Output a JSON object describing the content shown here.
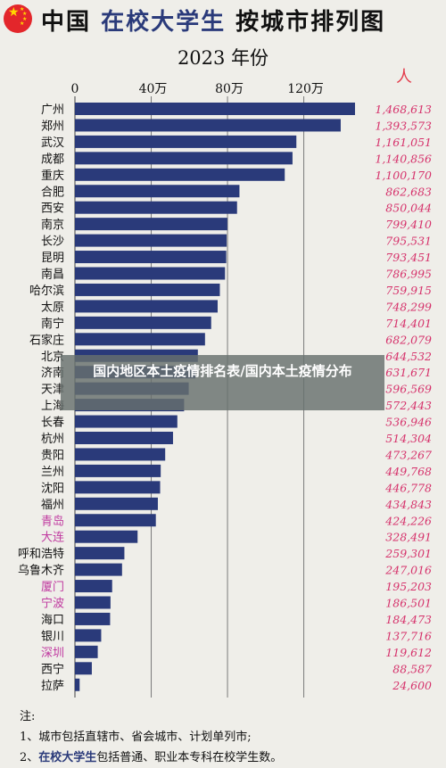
{
  "header": {
    "title_part1": "中国 ",
    "title_accent": "在校大学生",
    "title_part2": " 按城市排列图",
    "year": "2023 年份",
    "unit": "人"
  },
  "notes": {
    "heading": "注:",
    "line1": "1、城市包括直辖市、省会城市、计划单列市;",
    "line2_prefix": "2、",
    "line2_accent": "在校大学生",
    "line2_rest": "包括普通、职业本专科在校学生数。"
  },
  "overlay": {
    "text": "国内地区本土疫情排名表/国内本土疫情分布"
  },
  "colors": {
    "bar": "#2a3a7a",
    "value_label": "#d6336c",
    "highlight_city": "#c03aa0",
    "normal_city": "#111111",
    "background": "#efeee9"
  },
  "chart_data": {
    "type": "bar",
    "orientation": "horizontal",
    "title": "2023 年份",
    "xlabel": "",
    "ylabel": "",
    "unit": "人",
    "xlim": [
      0,
      1468613
    ],
    "x_ticks": [
      {
        "value": 0,
        "label": "0"
      },
      {
        "value": 400000,
        "label": "40万"
      },
      {
        "value": 800000,
        "label": "80万"
      },
      {
        "value": 1200000,
        "label": "120万"
      }
    ],
    "grid": true,
    "categories": [
      "广州",
      "郑州",
      "武汉",
      "成都",
      "重庆",
      "合肥",
      "西安",
      "南京",
      "长沙",
      "昆明",
      "南昌",
      "哈尔滨",
      "太原",
      "南宁",
      "石家庄",
      "北京",
      "济南",
      "天津",
      "上海",
      "长春",
      "杭州",
      "贵阳",
      "兰州",
      "沈阳",
      "福州",
      "青岛",
      "大连",
      "呼和浩特",
      "乌鲁木齐",
      "厦门",
      "宁波",
      "海口",
      "银川",
      "深圳",
      "西宁",
      "拉萨"
    ],
    "values": [
      1468613,
      1393573,
      1161051,
      1140856,
      1100170,
      862683,
      850044,
      799410,
      795531,
      793451,
      786995,
      759915,
      748299,
      714401,
      682079,
      644532,
      631671,
      596569,
      572443,
      536946,
      514304,
      473267,
      449768,
      446778,
      434843,
      424226,
      328491,
      259301,
      247016,
      195203,
      186501,
      184473,
      137716,
      119612,
      88587,
      24600
    ],
    "value_labels": [
      "1,468,613",
      "1,393,573",
      "1,161,051",
      "1,140,856",
      "1,100,170",
      "862,683",
      "850,044",
      "799,410",
      "795,531",
      "793,451",
      "786,995",
      "759,915",
      "748,299",
      "714,401",
      "682,079",
      "644,532",
      "631,671",
      "596,569",
      "572,443",
      "536,946",
      "514,304",
      "473,267",
      "449,768",
      "446,778",
      "434,843",
      "424,226",
      "328,491",
      "259,301",
      "247,016",
      "195,203",
      "186,501",
      "184,473",
      "137,716",
      "119,612",
      "88,587",
      "24,600"
    ],
    "highlighted_categories": [
      "青岛",
      "大连",
      "厦门",
      "宁波",
      "深圳"
    ]
  }
}
